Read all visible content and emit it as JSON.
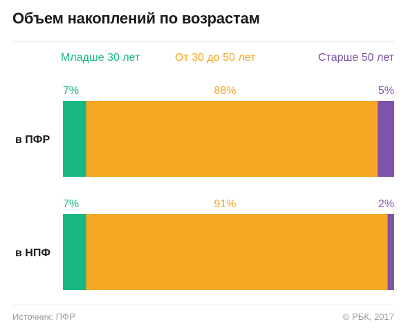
{
  "title": "Объем накоплений по возрастам",
  "colors": {
    "young": "#17b884",
    "middle": "#f5a623",
    "old": "#7d54a8",
    "text": "#1a1a1a",
    "muted": "#9a9a9a",
    "rule": "#e2e2e2"
  },
  "footer": {
    "source": "Источник: ПФР",
    "copyright": "© РБК, 2017"
  },
  "chart_data": {
    "type": "bar",
    "orientation": "horizontal",
    "stacked": true,
    "percent": true,
    "categories": [
      "в ПФР",
      "в НПФ"
    ],
    "series": [
      {
        "name": "Младше 30 лет",
        "values": [
          7,
          7
        ],
        "labels": [
          "7%",
          "7%"
        ],
        "color": "#17b884"
      },
      {
        "name": "От 30 до 50 лет",
        "values": [
          88,
          91
        ],
        "labels": [
          "88%",
          "91%"
        ],
        "color": "#f5a623"
      },
      {
        "name": "Старше 50 лет",
        "values": [
          5,
          2
        ],
        "labels": [
          "5%",
          "2%"
        ],
        "color": "#7d54a8"
      }
    ],
    "xlim": [
      0,
      100
    ],
    "grid": false,
    "legend": "top"
  }
}
